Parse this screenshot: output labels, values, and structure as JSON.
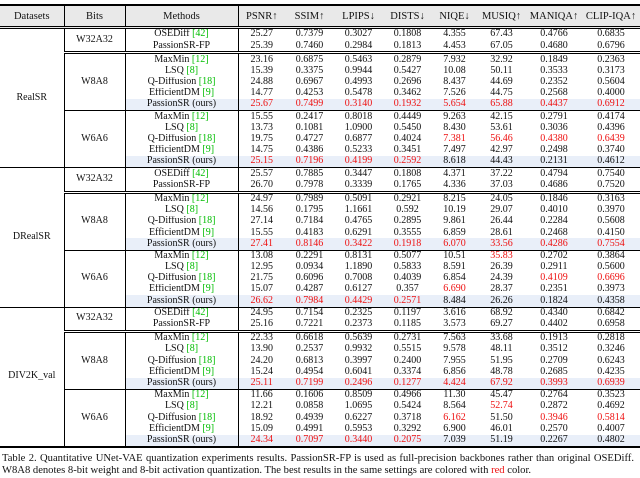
{
  "table": {
    "headers": [
      "Datasets",
      "Bits",
      "Methods",
      "PSNR↑",
      "SSIM↑",
      "LPIPS↓",
      "DISTS↓",
      "NIQE↓",
      "MUSIQ↑",
      "MANIQA↑",
      "CLIP-IQA↑"
    ],
    "groups": [
      {
        "dataset": "RealSR",
        "subs": [
          {
            "bits": "W32A32",
            "rows": [
              {
                "method": "OSEDiff",
                "cite": "[42]",
                "hl": false,
                "red": [],
                "vals": [
                  "25.27",
                  "0.7379",
                  "0.3027",
                  "0.1808",
                  "4.355",
                  "67.43",
                  "0.4766",
                  "0.6835"
                ]
              },
              {
                "method": "PassionSR-FP",
                "cite": "",
                "hl": false,
                "red": [],
                "vals": [
                  "25.39",
                  "0.7460",
                  "0.2984",
                  "0.1813",
                  "4.453",
                  "67.05",
                  "0.4680",
                  "0.6796"
                ]
              }
            ]
          },
          {
            "bits": "W8A8",
            "rows": [
              {
                "method": "MaxMin",
                "cite": "[12]",
                "hl": false,
                "red": [],
                "vals": [
                  "23.16",
                  "0.6875",
                  "0.5463",
                  "0.2879",
                  "7.932",
                  "32.92",
                  "0.1849",
                  "0.2363"
                ]
              },
              {
                "method": "LSQ",
                "cite": "[8]",
                "hl": false,
                "red": [],
                "vals": [
                  "15.39",
                  "0.3375",
                  "0.9944",
                  "0.5427",
                  "10.08",
                  "50.11",
                  "0.3533",
                  "0.3173"
                ]
              },
              {
                "method": "Q-Diffusion",
                "cite": "[18]",
                "hl": false,
                "red": [],
                "vals": [
                  "24.88",
                  "0.6967",
                  "0.4993",
                  "0.2696",
                  "8.437",
                  "44.69",
                  "0.2352",
                  "0.5604"
                ]
              },
              {
                "method": "EfficientDM",
                "cite": "[9]",
                "hl": false,
                "red": [],
                "vals": [
                  "14.77",
                  "0.4253",
                  "0.5478",
                  "0.3462",
                  "7.526",
                  "44.75",
                  "0.2568",
                  "0.4000"
                ]
              },
              {
                "method": "PassionSR (ours)",
                "cite": "",
                "hl": true,
                "red": [
                  0,
                  1,
                  2,
                  3,
                  4,
                  5,
                  6,
                  7
                ],
                "vals": [
                  "25.67",
                  "0.7499",
                  "0.3140",
                  "0.1932",
                  "5.654",
                  "65.88",
                  "0.4437",
                  "0.6912"
                ]
              }
            ]
          },
          {
            "bits": "W6A6",
            "rows": [
              {
                "method": "MaxMin",
                "cite": "[12]",
                "hl": false,
                "red": [],
                "vals": [
                  "15.55",
                  "0.2417",
                  "0.8018",
                  "0.4449",
                  "9.263",
                  "42.15",
                  "0.2791",
                  "0.4174"
                ]
              },
              {
                "method": "LSQ",
                "cite": "[8]",
                "hl": false,
                "red": [],
                "vals": [
                  "13.73",
                  "0.1081",
                  "1.0900",
                  "0.5450",
                  "8.430",
                  "53.61",
                  "0.3036",
                  "0.4396"
                ]
              },
              {
                "method": "Q-Diffusion",
                "cite": "[18]",
                "hl": false,
                "red": [
                  4,
                  5,
                  6,
                  7
                ],
                "vals": [
                  "19.75",
                  "0.4727",
                  "0.6877",
                  "0.4024",
                  "7.381",
                  "56.46",
                  "0.4380",
                  "0.6439"
                ]
              },
              {
                "method": "EfficientDM",
                "cite": "[9]",
                "hl": false,
                "red": [],
                "vals": [
                  "14.75",
                  "0.4386",
                  "0.5233",
                  "0.3451",
                  "7.497",
                  "42.97",
                  "0.2498",
                  "0.3740"
                ]
              },
              {
                "method": "PassionSR (ours)",
                "cite": "",
                "hl": true,
                "red": [
                  0,
                  1,
                  2,
                  3
                ],
                "vals": [
                  "25.15",
                  "0.7196",
                  "0.4199",
                  "0.2592",
                  "8.618",
                  "44.43",
                  "0.2131",
                  "0.4612"
                ]
              }
            ]
          }
        ]
      },
      {
        "dataset": "DRealSR",
        "subs": [
          {
            "bits": "W32A32",
            "rows": [
              {
                "method": "OSEDiff",
                "cite": "[42]",
                "hl": false,
                "red": [],
                "vals": [
                  "25.57",
                  "0.7885",
                  "0.3447",
                  "0.1808",
                  "4.371",
                  "37.22",
                  "0.4794",
                  "0.7540"
                ]
              },
              {
                "method": "PassionSR-FP",
                "cite": "",
                "hl": false,
                "red": [],
                "vals": [
                  "26.70",
                  "0.7978",
                  "0.3339",
                  "0.1765",
                  "4.336",
                  "37.03",
                  "0.4686",
                  "0.7520"
                ]
              }
            ]
          },
          {
            "bits": "W8A8",
            "rows": [
              {
                "method": "MaxMin",
                "cite": "[12]",
                "hl": false,
                "red": [],
                "vals": [
                  "24.97",
                  "0.7989",
                  "0.5091",
                  "0.2921",
                  "8.215",
                  "24.05",
                  "0.1846",
                  "0.3163"
                ]
              },
              {
                "method": "LSQ",
                "cite": "[8]",
                "hl": false,
                "red": [],
                "vals": [
                  "14.56",
                  "0.1795",
                  "1.1661",
                  "0.592",
                  "10.19",
                  "29.07",
                  "0.4010",
                  "0.3970"
                ]
              },
              {
                "method": "Q-Diffusion",
                "cite": "[18]",
                "hl": false,
                "red": [],
                "vals": [
                  "27.14",
                  "0.7184",
                  "0.4765",
                  "0.2895",
                  "9.861",
                  "26.44",
                  "0.2284",
                  "0.5608"
                ]
              },
              {
                "method": "EfficientDM",
                "cite": "[9]",
                "hl": false,
                "red": [],
                "vals": [
                  "15.55",
                  "0.4183",
                  "0.6291",
                  "0.3555",
                  "6.859",
                  "28.61",
                  "0.2468",
                  "0.4150"
                ]
              },
              {
                "method": "PassionSR (ours)",
                "cite": "",
                "hl": true,
                "red": [
                  0,
                  1,
                  2,
                  3,
                  4,
                  5,
                  6,
                  7
                ],
                "vals": [
                  "27.41",
                  "0.8146",
                  "0.3422",
                  "0.1918",
                  "6.070",
                  "33.56",
                  "0.4286",
                  "0.7554"
                ]
              }
            ]
          },
          {
            "bits": "W6A6",
            "rows": [
              {
                "method": "MaxMin",
                "cite": "[12]",
                "hl": false,
                "red": [
                  5
                ],
                "vals": [
                  "13.08",
                  "0.2291",
                  "0.8131",
                  "0.5077",
                  "10.51",
                  "35.83",
                  "0.2702",
                  "0.3864"
                ]
              },
              {
                "method": "LSQ",
                "cite": "[8]",
                "hl": false,
                "red": [],
                "vals": [
                  "12.95",
                  "0.0934",
                  "1.1890",
                  "0.5833",
                  "8.591",
                  "26.39",
                  "0.2911",
                  "0.5600"
                ]
              },
              {
                "method": "Q-Diffusion",
                "cite": "[18]",
                "hl": false,
                "red": [
                  6,
                  7
                ],
                "vals": [
                  "21.75",
                  "0.6096",
                  "0.7008",
                  "0.4039",
                  "6.854",
                  "24.39",
                  "0.4109",
                  "0.6696"
                ]
              },
              {
                "method": "EfficientDM",
                "cite": "[9]",
                "hl": false,
                "red": [
                  4
                ],
                "vals": [
                  "15.07",
                  "0.4287",
                  "0.6127",
                  "0.357",
                  "6.690",
                  "28.37",
                  "0.2351",
                  "0.3973"
                ]
              },
              {
                "method": "PassionSR (ours)",
                "cite": "",
                "hl": true,
                "red": [
                  0,
                  1,
                  2,
                  3
                ],
                "vals": [
                  "26.62",
                  "0.7984",
                  "0.4429",
                  "0.2571",
                  "8.484",
                  "26.26",
                  "0.1824",
                  "0.4358"
                ]
              }
            ]
          }
        ]
      },
      {
        "dataset": "DIV2K_val",
        "subs": [
          {
            "bits": "W32A32",
            "rows": [
              {
                "method": "OSEDiff",
                "cite": "[42]",
                "hl": false,
                "red": [],
                "vals": [
                  "24.95",
                  "0.7154",
                  "0.2325",
                  "0.1197",
                  "3.616",
                  "68.92",
                  "0.4340",
                  "0.6842"
                ]
              },
              {
                "method": "PassionSR-FP",
                "cite": "",
                "hl": false,
                "red": [],
                "vals": [
                  "25.16",
                  "0.7221",
                  "0.2373",
                  "0.1185",
                  "3.573",
                  "69.27",
                  "0.4402",
                  "0.6958"
                ]
              }
            ]
          },
          {
            "bits": "W8A8",
            "rows": [
              {
                "method": "MaxMin",
                "cite": "[12]",
                "hl": false,
                "red": [],
                "vals": [
                  "22.33",
                  "0.6618",
                  "0.5639",
                  "0.2731",
                  "7.563",
                  "33.68",
                  "0.1913",
                  "0.2818"
                ]
              },
              {
                "method": "LSQ",
                "cite": "[8]",
                "hl": false,
                "red": [],
                "vals": [
                  "13.90",
                  "0.2537",
                  "0.9932",
                  "0.5515",
                  "9.578",
                  "48.11",
                  "0.3512",
                  "0.3246"
                ]
              },
              {
                "method": "Q-Diffusion",
                "cite": "[18]",
                "hl": false,
                "red": [],
                "vals": [
                  "24.20",
                  "0.6813",
                  "0.3997",
                  "0.2400",
                  "7.955",
                  "51.95",
                  "0.2709",
                  "0.6243"
                ]
              },
              {
                "method": "EfficientDM",
                "cite": "[9]",
                "hl": false,
                "red": [],
                "vals": [
                  "15.24",
                  "0.4954",
                  "0.6041",
                  "0.3374",
                  "6.856",
                  "48.78",
                  "0.2685",
                  "0.4235"
                ]
              },
              {
                "method": "PassionSR (ours)",
                "cite": "",
                "hl": true,
                "red": [
                  0,
                  1,
                  2,
                  3,
                  4,
                  5,
                  6,
                  7
                ],
                "vals": [
                  "25.11",
                  "0.7199",
                  "0.2496",
                  "0.1277",
                  "4.424",
                  "67.92",
                  "0.3993",
                  "0.6939"
                ]
              }
            ]
          },
          {
            "bits": "W6A6",
            "rows": [
              {
                "method": "MaxMin",
                "cite": "[12]",
                "hl": false,
                "red": [],
                "vals": [
                  "11.66",
                  "0.1606",
                  "0.8509",
                  "0.4966",
                  "11.30",
                  "45.47",
                  "0.2764",
                  "0.3523"
                ]
              },
              {
                "method": "LSQ",
                "cite": "[8]",
                "hl": false,
                "red": [
                  5
                ],
                "vals": [
                  "12.21",
                  "0.0858",
                  "1.0695",
                  "0.5424",
                  "8.564",
                  "52.74",
                  "0.2872",
                  "0.4692"
                ]
              },
              {
                "method": "Q-Diffusion",
                "cite": "[18]",
                "hl": false,
                "red": [
                  4,
                  6,
                  7
                ],
                "vals": [
                  "18.92",
                  "0.4939",
                  "0.6227",
                  "0.3718",
                  "6.162",
                  "51.50",
                  "0.3946",
                  "0.5814"
                ]
              },
              {
                "method": "EfficientDM",
                "cite": "[9]",
                "hl": false,
                "red": [],
                "vals": [
                  "15.09",
                  "0.4991",
                  "0.5953",
                  "0.3292",
                  "6.900",
                  "46.01",
                  "0.2570",
                  "0.4007"
                ]
              },
              {
                "method": "PassionSR (ours)",
                "cite": "",
                "hl": true,
                "red": [
                  0,
                  1,
                  2,
                  3
                ],
                "vals": [
                  "24.34",
                  "0.7097",
                  "0.3440",
                  "0.2075",
                  "7.039",
                  "51.19",
                  "0.2267",
                  "0.4802"
                ]
              }
            ]
          }
        ]
      }
    ]
  },
  "caption": {
    "before": "Table 2. Quantitative UNet-VAE quantization experiments results.  PassionSR-FP is used as full-precision backbones rather than original OSEDiff. W8A8 denotes 8-bit weight and 8-bit activation quantization. The best results in the same settings are colored with ",
    "red_word": "red",
    "after": " color."
  }
}
